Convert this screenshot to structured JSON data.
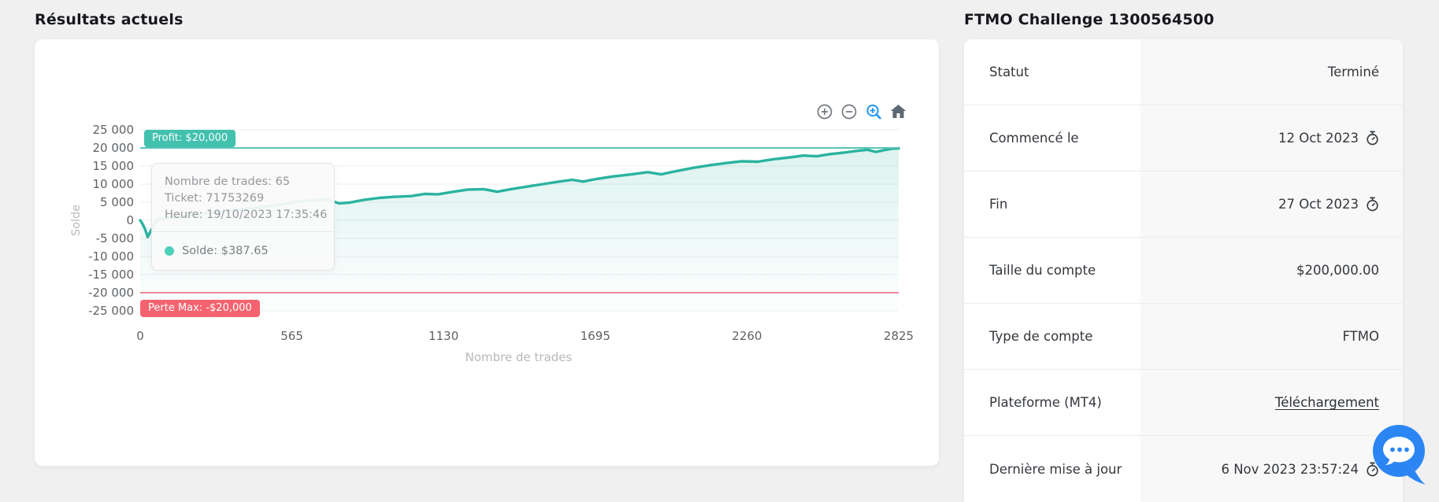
{
  "page": {
    "background": "#f0f0f1"
  },
  "left_panel": {
    "title": "Résultats actuels",
    "toolbar": {
      "zoom_in": "zoom-in",
      "zoom_out": "zoom-out",
      "selection_zoom": "selection-zoom",
      "home": "reset-home"
    }
  },
  "chart_data": {
    "type": "area",
    "title": "",
    "xlabel": "Nombre de trades",
    "ylabel": "Solde",
    "xlim": [
      0,
      2825
    ],
    "ylim": [
      -25000,
      25000
    ],
    "grid": "horizontal",
    "x_ticks": [
      0,
      565,
      1130,
      1695,
      2260,
      2825
    ],
    "y_ticks": [
      25000,
      20000,
      15000,
      10000,
      5000,
      0,
      -5000,
      -10000,
      -15000,
      -20000,
      -25000
    ],
    "y_tick_labels": [
      "25 000",
      "20 000",
      "15 000",
      "10 000",
      "5 000",
      "0",
      "-5 000",
      "-10 000",
      "-15 000",
      "-20 000",
      "-25 000"
    ],
    "series": [
      {
        "name": "Solde",
        "color": "#2ab3a0",
        "fill_color": "#2ab3a0",
        "points": [
          [
            0,
            0
          ],
          [
            8,
            -900
          ],
          [
            18,
            -2400
          ],
          [
            28,
            -4600
          ],
          [
            38,
            -3100
          ],
          [
            50,
            -1500
          ],
          [
            65,
            388
          ],
          [
            90,
            550
          ],
          [
            130,
            800
          ],
          [
            180,
            1300
          ],
          [
            240,
            1900
          ],
          [
            300,
            2400
          ],
          [
            360,
            2900
          ],
          [
            420,
            3400
          ],
          [
            480,
            3900
          ],
          [
            540,
            4600
          ],
          [
            600,
            5300
          ],
          [
            650,
            5600
          ],
          [
            700,
            5700
          ],
          [
            740,
            4700
          ],
          [
            780,
            4900
          ],
          [
            830,
            5600
          ],
          [
            890,
            6200
          ],
          [
            950,
            6500
          ],
          [
            1010,
            6700
          ],
          [
            1060,
            7300
          ],
          [
            1110,
            7200
          ],
          [
            1160,
            7800
          ],
          [
            1220,
            8500
          ],
          [
            1280,
            8600
          ],
          [
            1330,
            7900
          ],
          [
            1380,
            8600
          ],
          [
            1440,
            9300
          ],
          [
            1500,
            10000
          ],
          [
            1560,
            10700
          ],
          [
            1610,
            11200
          ],
          [
            1650,
            10700
          ],
          [
            1690,
            11300
          ],
          [
            1760,
            12100
          ],
          [
            1830,
            12700
          ],
          [
            1890,
            13300
          ],
          [
            1940,
            12700
          ],
          [
            1990,
            13500
          ],
          [
            2060,
            14500
          ],
          [
            2120,
            15200
          ],
          [
            2180,
            15800
          ],
          [
            2240,
            16300
          ],
          [
            2300,
            16200
          ],
          [
            2360,
            16900
          ],
          [
            2420,
            17400
          ],
          [
            2470,
            17900
          ],
          [
            2520,
            17700
          ],
          [
            2570,
            18300
          ],
          [
            2620,
            18700
          ],
          [
            2670,
            19200
          ],
          [
            2710,
            19500
          ],
          [
            2740,
            18900
          ],
          [
            2770,
            19400
          ],
          [
            2800,
            19800
          ],
          [
            2825,
            19900
          ]
        ]
      }
    ],
    "annotations": [
      {
        "type": "hline",
        "y": 20000,
        "line_color": "#5bc4b8",
        "label": "Profit: $20,000",
        "label_bg": "#41c1ae"
      },
      {
        "type": "hline",
        "y": -20000,
        "line_color": "#ef5e70",
        "label": "Perte Max: -$20,000",
        "label_bg": "#f4636f"
      }
    ],
    "tooltip": {
      "lines": [
        "Nombre de trades: 65",
        "Ticket: 71753269",
        "Heure: 19/10/2023 17:35:46"
      ],
      "series_label": "Solde: $387.65",
      "marker_color": "#4fd0bc"
    }
  },
  "info_panel": {
    "title": "FTMO Challenge 1300564500",
    "rows": [
      {
        "label": "Statut",
        "value": "Terminé",
        "icon": null,
        "link": false
      },
      {
        "label": "Commencé le",
        "value": "12 Oct 2023",
        "icon": "stopwatch-icon",
        "link": false
      },
      {
        "label": "Fin",
        "value": "27 Oct 2023",
        "icon": "stopwatch-icon",
        "link": false
      },
      {
        "label": "Taille du compte",
        "value": "$200,000.00",
        "icon": null,
        "link": false
      },
      {
        "label": "Type de compte",
        "value": "FTMO",
        "icon": null,
        "link": false
      },
      {
        "label": "Plateforme (MT4)",
        "value": "Téléchargement",
        "icon": null,
        "link": true
      },
      {
        "label": "Dernière mise à jour",
        "value": "6 Nov 2023 23:57:24",
        "icon": "stopwatch-icon",
        "link": false
      }
    ]
  },
  "chat_widget": {
    "color": "#2b86f4"
  }
}
